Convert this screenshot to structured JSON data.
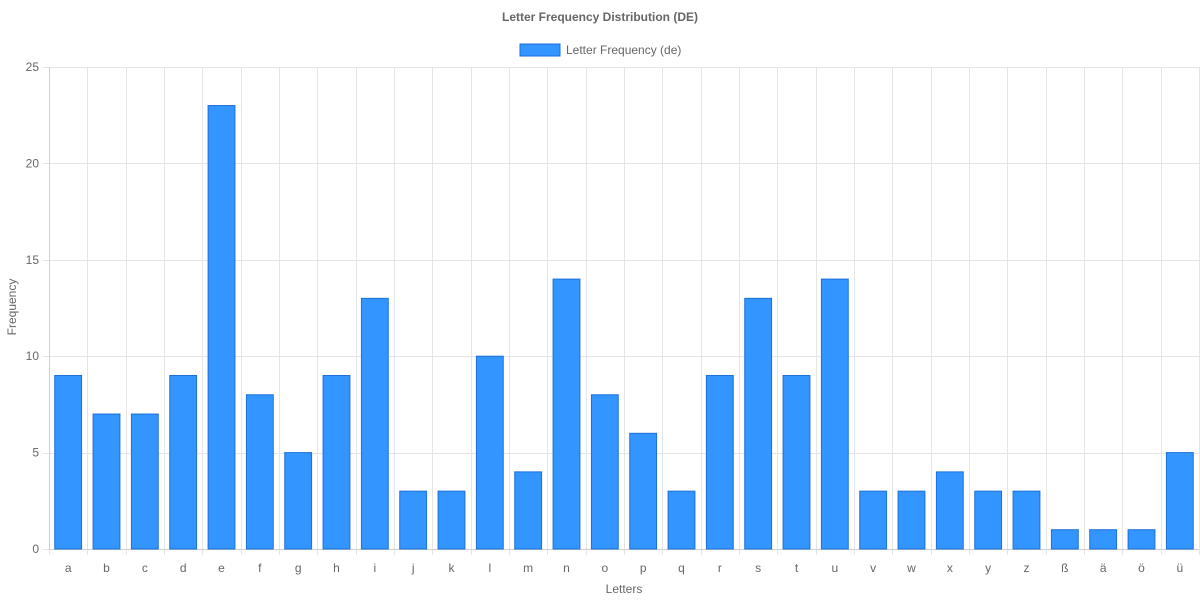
{
  "chart_data": {
    "type": "bar",
    "title": "Letter Frequency Distribution (DE)",
    "xlabel": "Letters",
    "ylabel": "Frequency",
    "ylim": [
      0,
      25
    ],
    "yticks": [
      0,
      5,
      10,
      15,
      20,
      25
    ],
    "grid": true,
    "legend_position": "top",
    "colors": {
      "bar_fill": "#3395ff",
      "bar_border": "#1e6fd9",
      "grid": "#e5e5e5",
      "text": "#666666"
    },
    "categories": [
      "a",
      "b",
      "c",
      "d",
      "e",
      "f",
      "g",
      "h",
      "i",
      "j",
      "k",
      "l",
      "m",
      "n",
      "o",
      "p",
      "q",
      "r",
      "s",
      "t",
      "u",
      "v",
      "w",
      "x",
      "y",
      "z",
      "ß",
      "ä",
      "ö",
      "ü"
    ],
    "series": [
      {
        "name": "Letter Frequency (de)",
        "values": [
          9,
          7,
          7,
          9,
          23,
          8,
          5,
          9,
          13,
          3,
          3,
          10,
          4,
          14,
          8,
          6,
          3,
          9,
          13,
          9,
          14,
          3,
          3,
          4,
          3,
          3,
          1,
          1,
          1,
          5
        ]
      }
    ]
  }
}
